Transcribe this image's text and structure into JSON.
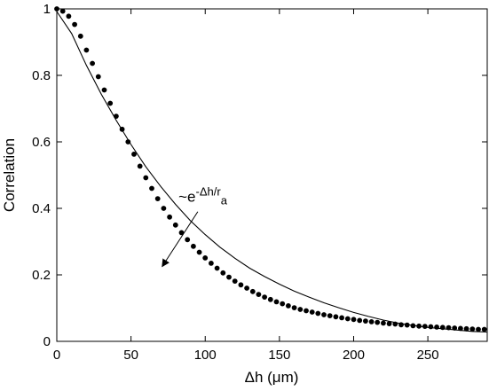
{
  "chart_data": {
    "type": "scatter",
    "xlabel": "Δh (μm)",
    "ylabel": "Correlation",
    "xlim": [
      0,
      290
    ],
    "ylim": [
      0,
      1
    ],
    "x_ticks": [
      "0",
      "50",
      "100",
      "150",
      "200",
      "250"
    ],
    "y_ticks": [
      "0",
      "0.2",
      "0.4",
      "0.6",
      "0.8",
      "1"
    ],
    "grid": false,
    "series": [
      {
        "kind": "points",
        "marker": "filled-circle",
        "x": [
          0,
          4,
          8,
          12,
          16,
          20,
          24,
          28,
          32,
          36,
          40,
          44,
          48,
          52,
          56,
          60,
          64,
          68,
          72,
          76,
          80,
          84,
          88,
          92,
          96,
          100,
          104,
          108,
          112,
          116,
          120,
          124,
          128,
          132,
          136,
          140,
          144,
          148,
          152,
          156,
          160,
          164,
          168,
          172,
          176,
          180,
          184,
          188,
          192,
          196,
          200,
          204,
          208,
          212,
          216,
          220,
          224,
          228,
          232,
          236,
          240,
          244,
          248,
          252,
          256,
          260,
          264,
          268,
          272,
          276,
          280,
          284,
          288
        ],
        "values": [
          1.0,
          0.993,
          0.978,
          0.953,
          0.918,
          0.876,
          0.836,
          0.796,
          0.756,
          0.716,
          0.677,
          0.638,
          0.6,
          0.563,
          0.527,
          0.492,
          0.46,
          0.429,
          0.4,
          0.374,
          0.35,
          0.327,
          0.306,
          0.286,
          0.268,
          0.251,
          0.235,
          0.22,
          0.206,
          0.193,
          0.181,
          0.17,
          0.16,
          0.15,
          0.141,
          0.133,
          0.126,
          0.119,
          0.113,
          0.107,
          0.101,
          0.096,
          0.092,
          0.088,
          0.084,
          0.08,
          0.077,
          0.074,
          0.071,
          0.068,
          0.066,
          0.063,
          0.061,
          0.059,
          0.057,
          0.055,
          0.053,
          0.052,
          0.05,
          0.049,
          0.047,
          0.046,
          0.045,
          0.044,
          0.043,
          0.042,
          0.041,
          0.04,
          0.039,
          0.038,
          0.037,
          0.036,
          0.036
        ]
      },
      {
        "kind": "line",
        "color": "#000000",
        "x": [
          0,
          10,
          20,
          30,
          40,
          50,
          60,
          70,
          80,
          90,
          100,
          110,
          120,
          130,
          140,
          150,
          160,
          170,
          180,
          190,
          200,
          210,
          220,
          230,
          240,
          250,
          260,
          270,
          280,
          290
        ],
        "values": [
          0.992,
          0.926,
          0.83,
          0.743,
          0.665,
          0.592,
          0.525,
          0.466,
          0.412,
          0.363,
          0.321,
          0.283,
          0.25,
          0.22,
          0.195,
          0.172,
          0.151,
          0.133,
          0.116,
          0.101,
          0.087,
          0.075,
          0.064,
          0.055,
          0.048,
          0.042,
          0.038,
          0.034,
          0.03,
          0.028
        ]
      }
    ],
    "annotation": {
      "prefix": "~e",
      "exponent": "-Δh/r",
      "subscript": "a",
      "text_at": [
        82,
        0.42
      ],
      "arrow_from": [
        95,
        0.39
      ],
      "arrow_to": [
        71,
        0.225
      ]
    }
  }
}
